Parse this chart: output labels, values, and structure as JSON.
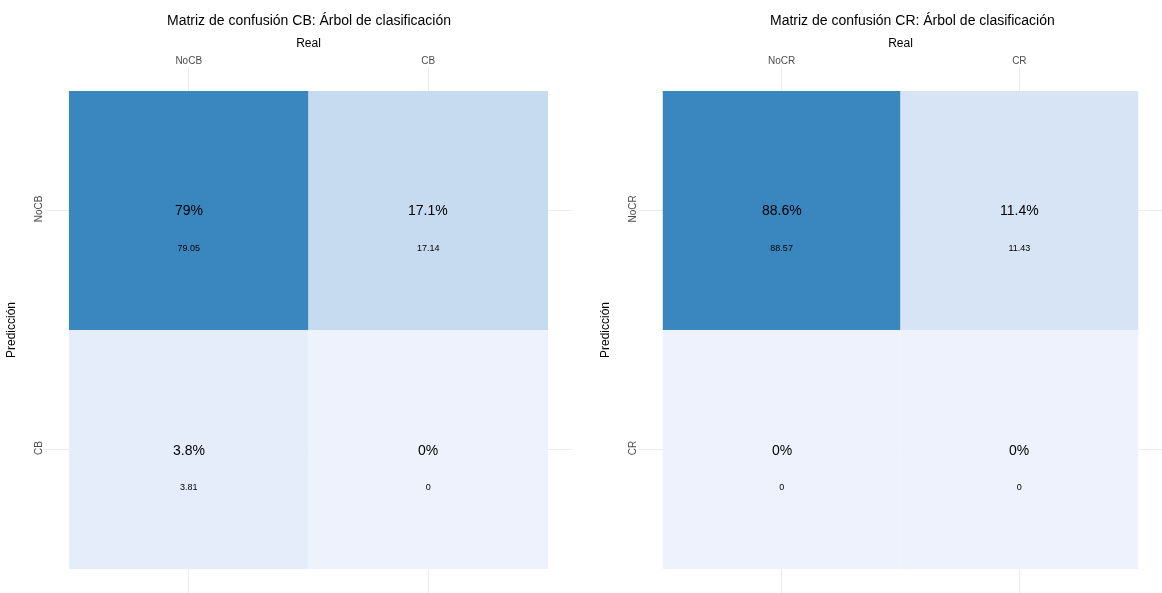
{
  "chart_data": [
    {
      "type": "heatmap",
      "title": "Matriz de confusión CB: Árbol de clasificación",
      "xlabel": "Real",
      "ylabel": "Predicción",
      "categories": [
        "NoCB",
        "CB"
      ],
      "y_categories": [
        "NoCB",
        "CB"
      ],
      "cells": [
        [
          79.05,
          17.14
        ],
        [
          3.81,
          0
        ]
      ],
      "data_labels": true,
      "grid": true,
      "annotations": [
        "79%",
        "17.1%",
        "3.8%",
        "0%"
      ]
    },
    {
      "type": "heatmap",
      "title": "Matriz de confusión CR: Árbol de clasificación",
      "xlabel": "Real",
      "ylabel": "Predicción",
      "categories": [
        "NoCR",
        "CR"
      ],
      "y_categories": [
        "NoCR",
        "CR"
      ],
      "cells": [
        [
          88.57,
          11.43
        ],
        [
          0,
          0
        ]
      ],
      "data_labels": true,
      "grid": true,
      "annotations": [
        "88.6%",
        "11.4%",
        "0%",
        "0%"
      ]
    }
  ]
}
